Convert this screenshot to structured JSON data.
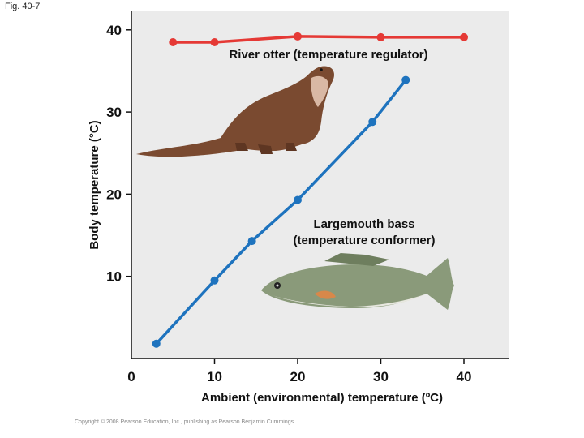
{
  "fig_label": "Fig. 40-7",
  "copyright": "Copyright © 2008 Pearson Education, Inc., publishing as Pearson Benjamin Cummings.",
  "chart_data": {
    "type": "line",
    "xlabel": "Ambient (environmental) temperature (ºC)",
    "ylabel": "Body temperature (°C)",
    "xlim": [
      0,
      45
    ],
    "ylim": [
      0,
      42
    ],
    "x_ticks": [
      0,
      10,
      20,
      30,
      40
    ],
    "y_ticks": [
      10,
      20,
      30,
      40
    ],
    "x_tick_labels": [
      "0",
      "10",
      "20",
      "30",
      "40"
    ],
    "y_tick_labels": [
      "10",
      "20",
      "30",
      "40"
    ],
    "series": [
      {
        "name": "River otter (temperature regulator)",
        "color": "#e53935",
        "x": [
          5,
          10,
          20,
          30,
          40
        ],
        "y": [
          38.5,
          38.5,
          39.2,
          39.1,
          39.1
        ]
      },
      {
        "name": "Largemouth bass (temperature conformer)",
        "color": "#1e73be",
        "x": [
          3,
          10,
          14.5,
          20,
          29,
          33
        ],
        "y": [
          1.8,
          9.5,
          14.3,
          19.3,
          28.8,
          33.9
        ]
      }
    ],
    "annotations": {
      "otter": "River otter (temperature regulator)",
      "bass_line1": "Largemouth bass",
      "bass_line2": "(temperature conformer)"
    }
  }
}
